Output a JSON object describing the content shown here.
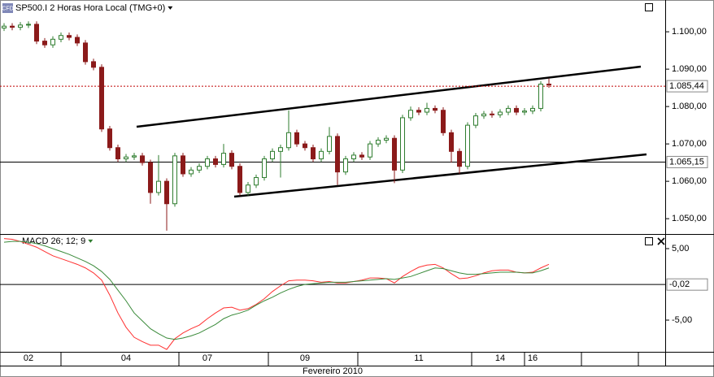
{
  "header": {
    "icon": "CFD",
    "x_axis_title": "Fevereiro 2010"
  },
  "chart_data": [
    {
      "type": "candlestick",
      "title": "SP500.I 2 Horas Hora Local (TMG+0)",
      "categories": [
        null,
        null,
        null,
        "02",
        null,
        null,
        null,
        null,
        null,
        null,
        null,
        null,
        null,
        null,
        null,
        "04",
        null,
        null,
        null,
        null,
        null,
        null,
        null,
        null,
        null,
        "07",
        null,
        null,
        null,
        null,
        null,
        null,
        null,
        null,
        null,
        null,
        null,
        "09",
        null,
        null,
        null,
        null,
        null,
        null,
        null,
        null,
        null,
        null,
        null,
        null,
        null,
        "11",
        null,
        null,
        null,
        null,
        null,
        null,
        null,
        null,
        null,
        "14",
        null,
        null,
        null,
        "16",
        null,
        null
      ],
      "open": [
        1.101,
        1.1015,
        1.1012,
        1.1018,
        1.102,
        1.0975,
        1.0965,
        1.098,
        1.099,
        1.0985,
        1.097,
        1.092,
        1.0905,
        1.074,
        1.069,
        1.066,
        1.0665,
        1.0668,
        1.065,
        1.057,
        1.06,
        1.054,
        1.0668,
        1.062,
        1.063,
        1.064,
        1.066,
        1.0645,
        1.0675,
        1.064,
        1.057,
        1.059,
        1.061,
        1.066,
        1.068,
        1.069,
        1.073,
        1.07,
        1.069,
        1.066,
        1.068,
        1.072,
        1.0625,
        1.066,
        1.067,
        1.0665,
        1.07,
        1.071,
        1.0715,
        1.063,
        1.077,
        1.079,
        1.0785,
        1.0795,
        1.079,
        1.073,
        1.068,
        1.064,
        1.075,
        1.0775,
        1.078,
        1.0778,
        1.0785,
        1.0795,
        1.0785,
        1.0788,
        1.0795,
        1.086
      ],
      "high": [
        1.1023,
        1.1023,
        1.1026,
        1.1028,
        1.1028,
        1.0983,
        1.0988,
        1.0998,
        1.0998,
        1.0993,
        1.0978,
        1.0928,
        1.0913,
        1.0748,
        1.0698,
        1.0673,
        1.0676,
        1.0676,
        1.0658,
        1.067,
        1.0608,
        1.0676,
        1.0676,
        1.0638,
        1.0648,
        1.0668,
        1.0668,
        1.07,
        1.0683,
        1.0648,
        1.0598,
        1.0618,
        1.0668,
        1.0688,
        1.0698,
        1.079,
        1.0738,
        1.0708,
        1.0698,
        1.0688,
        1.0745,
        1.0728,
        1.0668,
        1.0678,
        1.0678,
        1.0708,
        1.0718,
        1.0723,
        1.0723,
        1.0778,
        1.08,
        1.0798,
        1.081,
        1.0803,
        1.0798,
        1.0738,
        1.0688,
        1.0758,
        1.0783,
        1.0788,
        1.0788,
        1.0793,
        1.0803,
        1.0803,
        1.0796,
        1.0803,
        1.0868,
        1.0875
      ],
      "low": [
        1.1002,
        1.1004,
        1.1004,
        1.101,
        1.0967,
        1.0957,
        1.0957,
        1.0972,
        1.0977,
        1.0962,
        1.0912,
        1.0897,
        1.0732,
        1.0682,
        1.0652,
        1.0652,
        1.0657,
        1.0642,
        1.054,
        1.0562,
        1.0468,
        1.0532,
        1.0612,
        1.0612,
        1.0622,
        1.0632,
        1.0637,
        1.0637,
        1.0632,
        1.0562,
        1.0562,
        1.0582,
        1.0602,
        1.0652,
        1.061,
        1.0682,
        1.0692,
        1.0682,
        1.0652,
        1.0652,
        1.0672,
        1.059,
        1.0617,
        1.0652,
        1.0657,
        1.0657,
        1.0692,
        1.0702,
        1.0595,
        1.0622,
        1.0762,
        1.0777,
        1.0777,
        1.0782,
        1.0722,
        1.065,
        1.062,
        1.0632,
        1.0742,
        1.0767,
        1.077,
        1.077,
        1.0777,
        1.0777,
        1.0777,
        1.078,
        1.0787,
        1.085
      ],
      "close": [
        1.1015,
        1.1012,
        1.1018,
        1.102,
        1.0975,
        1.0965,
        1.098,
        1.099,
        1.0985,
        1.097,
        1.092,
        1.0905,
        1.074,
        1.069,
        1.066,
        1.0665,
        1.0668,
        1.065,
        1.057,
        1.06,
        1.054,
        1.0668,
        1.062,
        1.063,
        1.064,
        1.066,
        1.0645,
        1.0675,
        1.064,
        1.057,
        1.059,
        1.061,
        1.066,
        1.068,
        1.069,
        1.073,
        1.07,
        1.069,
        1.066,
        1.068,
        1.072,
        1.0625,
        1.066,
        1.067,
        1.0665,
        1.07,
        1.071,
        1.0715,
        1.063,
        1.077,
        1.079,
        1.0785,
        1.0795,
        1.079,
        1.073,
        1.068,
        1.064,
        1.075,
        1.0775,
        1.078,
        1.0778,
        1.0785,
        1.0795,
        1.0785,
        1.0788,
        1.0795,
        1.086,
        1.0858
      ],
      "up_color": "#2f7d2f",
      "down_color": "#8b1a1a",
      "ylim": [
        1.0459,
        1.1085
      ],
      "yticks": [
        {
          "value": 1.1,
          "label": "1.100,00"
        },
        {
          "value": 1.09,
          "label": "1.090,00"
        },
        {
          "value": 1.08,
          "label": "1.080,00"
        },
        {
          "value": 1.07,
          "label": "1.070,00"
        },
        {
          "value": 1.06,
          "label": "1.060,00"
        },
        {
          "value": 1.05,
          "label": "1.050,00"
        }
      ],
      "levels": [
        {
          "value": 1.08544,
          "label": "1.085,44",
          "color": "#c00000",
          "text_color": "#000000",
          "dotted": true
        },
        {
          "value": 1.06515,
          "label": "1.065,15",
          "color": "#000000",
          "text_color": "#c00000",
          "dotted": false
        }
      ]
    },
    {
      "type": "line",
      "title": "MACD 26; 12; 9",
      "title_color": "#2f7d2f",
      "series": [
        {
          "color": "#ff3030",
          "values": [
            6.4,
            6.3,
            6.0,
            5.6,
            5.2,
            4.6,
            4.0,
            3.6,
            3.2,
            2.8,
            2.3,
            1.6,
            0.6,
            -1.5,
            -4.0,
            -6.0,
            -7.4,
            -8.0,
            -8.5,
            -8.5,
            -9.1,
            -7.6,
            -6.8,
            -6.2,
            -5.7,
            -4.8,
            -4.0,
            -3.3,
            -3.2,
            -3.6,
            -3.4,
            -2.8,
            -2.0,
            -1.0,
            -0.2,
            0.5,
            0.6,
            0.6,
            0.5,
            0.3,
            0.4,
            0.2,
            0.2,
            0.4,
            0.6,
            0.9,
            0.9,
            0.8,
            0.2,
            1.1,
            1.8,
            2.4,
            2.7,
            2.8,
            2.3,
            1.5,
            0.8,
            0.9,
            1.2,
            1.6,
            1.9,
            2.0,
            2.0,
            1.7,
            1.6,
            1.7,
            2.3,
            2.8
          ]
        },
        {
          "color": "#3a8a3a",
          "values": [
            5.9,
            6.0,
            6.0,
            5.9,
            5.7,
            5.4,
            5.0,
            4.6,
            4.2,
            3.7,
            3.2,
            2.6,
            1.8,
            0.7,
            -0.8,
            -2.3,
            -4.0,
            -5.1,
            -6.2,
            -6.9,
            -7.5,
            -7.7,
            -7.5,
            -7.2,
            -6.8,
            -6.2,
            -5.6,
            -4.8,
            -4.3,
            -4.0,
            -3.6,
            -2.9,
            -2.3,
            -1.8,
            -1.2,
            -0.7,
            -0.3,
            0,
            0.1,
            0.2,
            0.3,
            0.3,
            0.3,
            0.4,
            0.5,
            0.6,
            0.7,
            0.8,
            0.7,
            0.9,
            1.1,
            1.5,
            1.9,
            2.3,
            2.2,
            1.9,
            1.6,
            1.4,
            1.4,
            1.5,
            1.6,
            1.7,
            1.7,
            1.7,
            1.6,
            1.6,
            1.9,
            2.3
          ]
        }
      ],
      "ylim": [
        -9.43,
        6.93
      ],
      "yticks": [
        {
          "value": 5,
          "label": "5,00"
        },
        {
          "value": -5,
          "label": "-5,00"
        }
      ],
      "levels": [
        {
          "value": -0.02,
          "label": "-0,02",
          "color": "#000000",
          "text_color": "#c00000",
          "dotted": false
        }
      ]
    }
  ]
}
